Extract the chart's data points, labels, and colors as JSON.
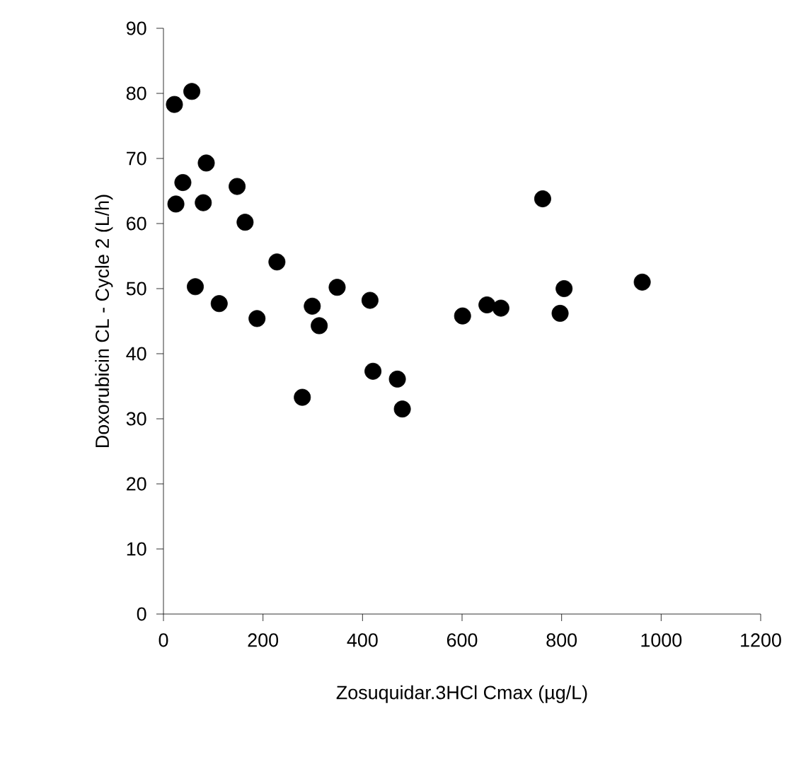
{
  "chart_data": {
    "type": "scatter",
    "xlabel": "Zosuquidar.3HCl Cmax (µg/L)",
    "ylabel": "Doxorubicin CL - Cycle 2 (L/h)",
    "x": [
      22,
      57,
      86,
      39,
      25,
      80,
      148,
      164,
      228,
      64,
      112,
      188,
      299,
      313,
      349,
      279,
      415,
      421,
      470,
      480,
      601,
      650,
      678,
      762,
      805,
      797,
      962
    ],
    "series": [
      {
        "color": "#000000",
        "values": [
          78.3,
          80.3,
          69.3,
          66.3,
          63.0,
          63.2,
          65.7,
          60.2,
          54.1,
          50.3,
          47.7,
          45.4,
          47.3,
          44.3,
          50.2,
          33.3,
          48.2,
          37.3,
          36.1,
          31.5,
          45.8,
          47.5,
          47.0,
          63.8,
          50.0,
          46.2,
          51.0
        ]
      }
    ],
    "xlim": [
      0,
      1200
    ],
    "ylim": [
      0,
      90
    ],
    "xticks": [
      0,
      200,
      400,
      600,
      800,
      1000,
      1200
    ],
    "yticks": [
      0,
      10,
      20,
      30,
      40,
      50,
      60,
      70,
      80,
      90
    ],
    "grid": false
  }
}
